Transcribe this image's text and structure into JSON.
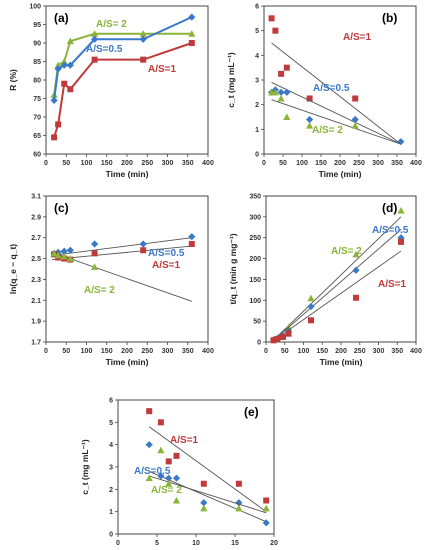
{
  "colors": {
    "blue": "#3a78c8",
    "red": "#c0393b",
    "green": "#8ab43a",
    "trend": "#555555"
  },
  "chart_data": [
    {
      "id": "a",
      "type": "line",
      "panel_label": "(a)",
      "xlabel": "Time (min)",
      "ylabel": "R (%)",
      "xlim": [
        0,
        400
      ],
      "ylim": [
        60,
        100
      ],
      "xticks": [
        "0",
        "50",
        "100",
        "150",
        "200",
        "250",
        "300",
        "350",
        "400"
      ],
      "yticks": [
        "60",
        "65",
        "70",
        "75",
        "80",
        "85",
        "90",
        "95",
        "100"
      ],
      "series": [
        {
          "name": "A/S= 2",
          "color": "green",
          "marker": "triangle",
          "x": [
            20,
            30,
            45,
            60,
            120,
            240,
            360
          ],
          "y": [
            76,
            84,
            85,
            90.5,
            92.5,
            92.5,
            92.5
          ]
        },
        {
          "name": "A/S=0.5",
          "color": "blue",
          "marker": "diamond",
          "x": [
            20,
            30,
            45,
            60,
            120,
            240,
            360
          ],
          "y": [
            74.5,
            83,
            84,
            84,
            91,
            91,
            97
          ]
        },
        {
          "name": "A/S=1",
          "color": "red",
          "marker": "square",
          "x": [
            20,
            30,
            45,
            60,
            120,
            240,
            360
          ],
          "y": [
            64.5,
            68,
            79,
            77.5,
            85.5,
            85.5,
            90
          ]
        }
      ]
    },
    {
      "id": "b",
      "type": "scatter",
      "panel_label": "(b)",
      "xlabel": "Time (min)",
      "ylabel": "c_t (mg mL⁻¹)",
      "xlim": [
        0,
        400
      ],
      "ylim": [
        0,
        6
      ],
      "xticks": [
        "0",
        "50",
        "100",
        "150",
        "200",
        "250",
        "300",
        "350",
        "400"
      ],
      "yticks": [
        "0",
        "1",
        "2",
        "3",
        "4",
        "5",
        "6"
      ],
      "series": [
        {
          "name": "A/S=1",
          "color": "red",
          "marker": "square",
          "x": [
            20,
            30,
            45,
            60,
            120,
            240
          ],
          "y": [
            5.5,
            5.0,
            3.25,
            3.5,
            2.25,
            2.25
          ],
          "trend": [
            [
              20,
              4.5
            ],
            [
              360,
              0.4
            ]
          ]
        },
        {
          "name": "A/S=0.5",
          "color": "blue",
          "marker": "diamond",
          "x": [
            20,
            30,
            45,
            60,
            120,
            240,
            360
          ],
          "y": [
            2.5,
            2.6,
            2.5,
            2.5,
            1.4,
            1.4,
            0.5
          ],
          "trend": [
            [
              20,
              2.9
            ],
            [
              360,
              0.4
            ]
          ]
        },
        {
          "name": "A/S= 2",
          "color": "green",
          "marker": "triangle",
          "x": [
            20,
            30,
            45,
            60,
            120,
            240
          ],
          "y": [
            2.5,
            2.5,
            2.25,
            1.5,
            1.15,
            1.15
          ],
          "trend": [
            [
              20,
              2.2
            ],
            [
              360,
              0.4
            ]
          ]
        }
      ]
    },
    {
      "id": "c",
      "type": "scatter",
      "panel_label": "(c)",
      "xlabel": "Time (min)",
      "ylabel": "ln(q_e − q_t)",
      "xlim": [
        0,
        400
      ],
      "ylim": [
        1.7,
        3.1
      ],
      "xticks": [
        "0",
        "50",
        "100",
        "150",
        "200",
        "250",
        "300",
        "350",
        "400"
      ],
      "yticks": [
        "1.7",
        "1.9",
        "2.1",
        "2.3",
        "2.5",
        "2.7",
        "2.9",
        "3.1"
      ],
      "series": [
        {
          "name": "A/S=0.5",
          "color": "blue",
          "marker": "diamond",
          "x": [
            20,
            30,
            45,
            60,
            120,
            240,
            360
          ],
          "y": [
            2.55,
            2.56,
            2.57,
            2.58,
            2.64,
            2.64,
            2.71
          ],
          "trend": [
            [
              15,
              2.53
            ],
            [
              360,
              2.7
            ]
          ]
        },
        {
          "name": "A/S=1",
          "color": "red",
          "marker": "square",
          "x": [
            20,
            30,
            45,
            60,
            120,
            240,
            360
          ],
          "y": [
            2.54,
            2.51,
            2.5,
            2.49,
            2.55,
            2.58,
            2.64
          ],
          "trend": [
            [
              15,
              2.49
            ],
            [
              360,
              2.62
            ]
          ]
        },
        {
          "name": "A/S= 2",
          "color": "green",
          "marker": "triangle",
          "x": [
            20,
            30,
            45,
            60,
            120
          ],
          "y": [
            2.55,
            2.53,
            2.52,
            2.5,
            2.42
          ],
          "trend": [
            [
              15,
              2.56
            ],
            [
              360,
              2.09
            ]
          ]
        }
      ]
    },
    {
      "id": "d",
      "type": "scatter",
      "panel_label": "(d)",
      "xlabel": "Time (min)",
      "ylabel": "t/q_t (min g mg⁻¹)",
      "xlim": [
        0,
        400
      ],
      "ylim": [
        0,
        350
      ],
      "xticks": [
        "0",
        "50",
        "100",
        "150",
        "200",
        "250",
        "300",
        "350",
        "400"
      ],
      "yticks": [
        "0",
        "50",
        "100",
        "150",
        "200",
        "250",
        "300",
        "350"
      ],
      "series": [
        {
          "name": "A/S= 2",
          "color": "green",
          "marker": "triangle",
          "x": [
            20,
            30,
            45,
            60,
            120,
            240,
            360
          ],
          "y": [
            6,
            10,
            16,
            35,
            105,
            210,
            315
          ],
          "trend": [
            [
              15,
              0
            ],
            [
              360,
              300
            ]
          ]
        },
        {
          "name": "A/S=0.5",
          "color": "blue",
          "marker": "diamond",
          "x": [
            20,
            30,
            45,
            60,
            120,
            240,
            360
          ],
          "y": [
            5,
            8,
            14,
            25,
            85,
            172,
            250
          ],
          "trend": [
            [
              15,
              0
            ],
            [
              360,
              270
            ]
          ]
        },
        {
          "name": "A/S=1",
          "color": "red",
          "marker": "square",
          "x": [
            20,
            30,
            45,
            60,
            120,
            240,
            360
          ],
          "y": [
            4,
            7,
            12,
            20,
            52,
            106,
            240
          ],
          "trend": [
            [
              15,
              0
            ],
            [
              360,
              218
            ]
          ]
        }
      ]
    },
    {
      "id": "e",
      "type": "scatter",
      "panel_label": "(e)",
      "xlabel": "t⁰·⁵  (min⁰·⁵)",
      "ylabel": "c_t (mg mL⁻¹)",
      "xlim": [
        0,
        20
      ],
      "ylim": [
        0,
        6
      ],
      "xticks": [
        "0",
        "5",
        "10",
        "15",
        "20"
      ],
      "yticks": [
        "0",
        "1",
        "2",
        "3",
        "4",
        "5",
        "6"
      ],
      "series": [
        {
          "name": "A/S=1",
          "color": "red",
          "marker": "square",
          "x": [
            4,
            5.5,
            6.5,
            7.5,
            11,
            15.5,
            19
          ],
          "y": [
            5.5,
            5.0,
            3.25,
            3.5,
            2.25,
            2.25,
            1.5
          ],
          "trend": [
            [
              4,
              4.8
            ],
            [
              19,
              1.0
            ]
          ]
        },
        {
          "name": "A/S=0.5",
          "color": "blue",
          "marker": "diamond",
          "x": [
            4,
            5.5,
            6.5,
            7.5,
            11,
            15.5,
            19
          ],
          "y": [
            4.0,
            2.6,
            2.5,
            2.5,
            1.4,
            1.4,
            0.5
          ],
          "trend": [
            [
              4,
              2.8
            ],
            [
              19,
              0.55
            ]
          ]
        },
        {
          "name": "A/S= 2",
          "color": "green",
          "marker": "triangle",
          "x": [
            4,
            5.5,
            6.5,
            7.5,
            11,
            15.5,
            19
          ],
          "y": [
            2.5,
            3.75,
            2.25,
            1.5,
            1.15,
            1.15,
            1.15
          ],
          "trend": [
            [
              4,
              2.6
            ],
            [
              19,
              0.95
            ]
          ]
        }
      ]
    }
  ]
}
